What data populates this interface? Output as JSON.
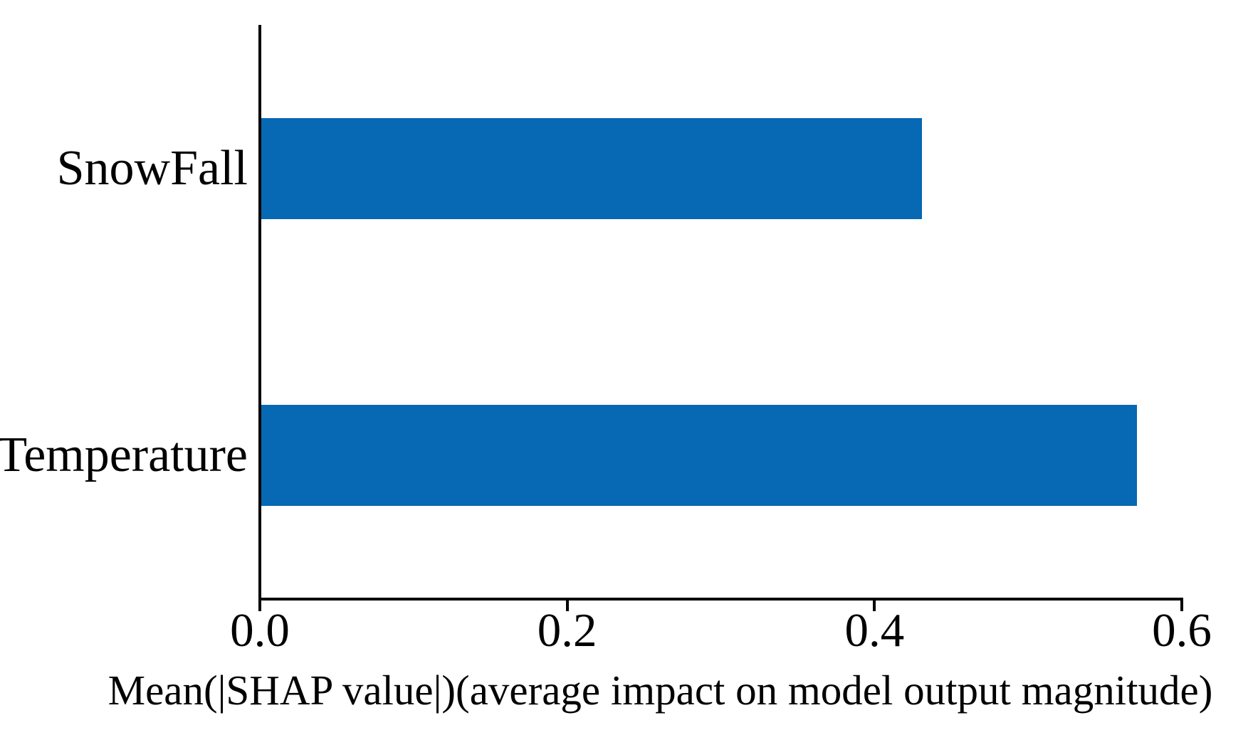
{
  "chart_data": {
    "type": "bar",
    "orientation": "horizontal",
    "title": "",
    "xlabel": "Mean(|SHAP value|)(average impact on model output magnitude)",
    "ylabel": "",
    "categories": [
      "SnowFall",
      "Temperature"
    ],
    "values": [
      0.43,
      0.57
    ],
    "xlim": [
      0,
      0.6
    ],
    "xticks": [
      {
        "value": 0.0,
        "label": "0.0"
      },
      {
        "value": 0.2,
        "label": "0.2"
      },
      {
        "value": 0.4,
        "label": "0.4"
      },
      {
        "value": 0.6,
        "label": "0.6"
      }
    ],
    "bar_color": "#0768b3",
    "axis_color": "#000000",
    "text_color": "#000000",
    "background_color": "#ffffff",
    "grid": false,
    "legend": null
  }
}
